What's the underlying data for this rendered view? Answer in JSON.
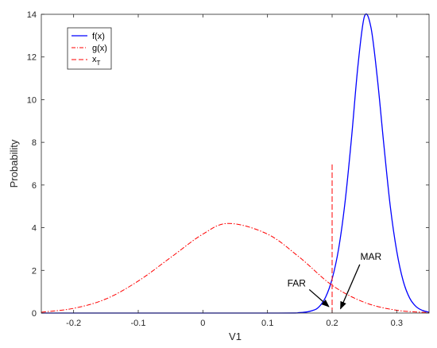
{
  "chart_data": {
    "type": "line",
    "xlabel": "V1",
    "ylabel": "Probability",
    "xlim": [
      -0.25,
      0.35
    ],
    "ylim": [
      0,
      14
    ],
    "xticks": [
      "-0.2",
      "-0.1",
      "0",
      "0.1",
      "0.2",
      "0.3"
    ],
    "yticks": [
      "0",
      "2",
      "4",
      "6",
      "8",
      "10",
      "12",
      "14"
    ],
    "grid": false,
    "legend_position": "top-left",
    "series": [
      {
        "name": "f(x)",
        "style": "solid",
        "color": "#0000ff",
        "x": [
          -0.25,
          0.1,
          0.15,
          0.17,
          0.18,
          0.19,
          0.2,
          0.21,
          0.22,
          0.23,
          0.24,
          0.25,
          0.26,
          0.27,
          0.28,
          0.29,
          0.3,
          0.31,
          0.32,
          0.33,
          0.34,
          0.35
        ],
        "y": [
          0,
          0,
          0.02,
          0.12,
          0.3,
          0.75,
          1.6,
          3.0,
          5.2,
          8.2,
          11.6,
          13.9,
          13.4,
          11.0,
          7.9,
          5.0,
          2.9,
          1.5,
          0.7,
          0.3,
          0.12,
          0.04
        ]
      },
      {
        "name": "g(x)",
        "style": "dashdot",
        "color": "#ff0000",
        "x": [
          -0.25,
          -0.2,
          -0.15,
          -0.1,
          -0.05,
          0.0,
          0.04,
          0.1,
          0.15,
          0.2,
          0.25,
          0.3,
          0.35
        ],
        "y": [
          0.04,
          0.22,
          0.66,
          1.5,
          2.6,
          3.7,
          4.2,
          3.7,
          2.6,
          1.3,
          0.5,
          0.13,
          0.02
        ]
      },
      {
        "name": "x_T",
        "style": "dashed",
        "color": "#ff0000",
        "x": [
          0.2,
          0.2
        ],
        "y": [
          0,
          7
        ]
      }
    ],
    "legend": [
      {
        "label": "f(x)"
      },
      {
        "label": "g(x)"
      },
      {
        "label_main": "x",
        "label_sub": "T"
      }
    ],
    "annotations": [
      {
        "text": "FAR",
        "text_at": [
          0.145,
          1.25
        ],
        "arrow_to": [
          0.195,
          0.3
        ]
      },
      {
        "text": "MAR",
        "text_at": [
          0.26,
          2.5
        ],
        "arrow_to": [
          0.213,
          0.2
        ]
      }
    ]
  }
}
